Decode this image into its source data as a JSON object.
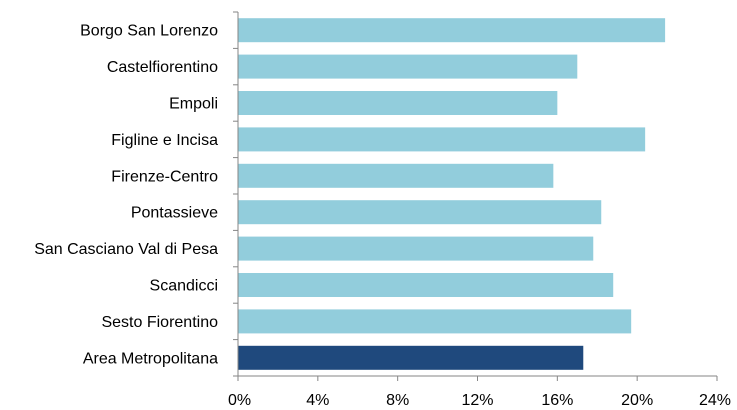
{
  "chart_data": {
    "type": "bar",
    "orientation": "horizontal",
    "title": "",
    "xlabel": "",
    "ylabel": "",
    "categories": [
      "Borgo San Lorenzo",
      "Castelfiorentino",
      "Empoli",
      "Figline e Incisa",
      "Firenze-Centro",
      "Pontassieve",
      "San Casciano Val di Pesa",
      "Scandicci",
      "Sesto Fiorentino",
      "Area Metropolitana"
    ],
    "values": [
      21.4,
      17.0,
      16.0,
      20.4,
      15.8,
      18.2,
      17.8,
      18.8,
      19.7,
      17.3
    ],
    "xlim": [
      0,
      24
    ],
    "x_ticks": [
      "0%",
      "4%",
      "8%",
      "12%",
      "16%",
      "20%",
      "24%"
    ],
    "grid": false,
    "legend": "none",
    "colors": {
      "default_bar": "#92cddc",
      "highlight_bar": "#1f497d",
      "axis": "#868686"
    },
    "highlight_category": "Area Metropolitana"
  }
}
